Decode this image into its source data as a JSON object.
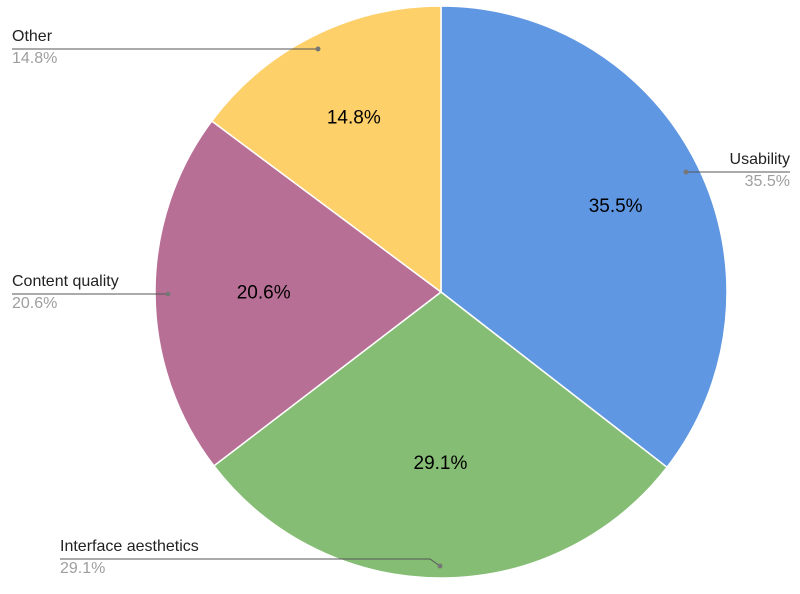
{
  "chart_data": {
    "type": "pie",
    "title": "",
    "start_angle_deg": 0,
    "direction": "clockwise",
    "slices": [
      {
        "label": "Usability",
        "value": 35.5,
        "display": "35.5%",
        "color": "#6097e2"
      },
      {
        "label": "Interface aesthetics",
        "value": 29.1,
        "display": "29.1%",
        "color": "#86bd75"
      },
      {
        "label": "Content quality",
        "value": 20.6,
        "display": "20.6%",
        "color": "#b86f95"
      },
      {
        "label": "Other",
        "value": 14.8,
        "display": "14.8%",
        "color": "#fdd06a"
      }
    ],
    "legend": "callouts"
  }
}
